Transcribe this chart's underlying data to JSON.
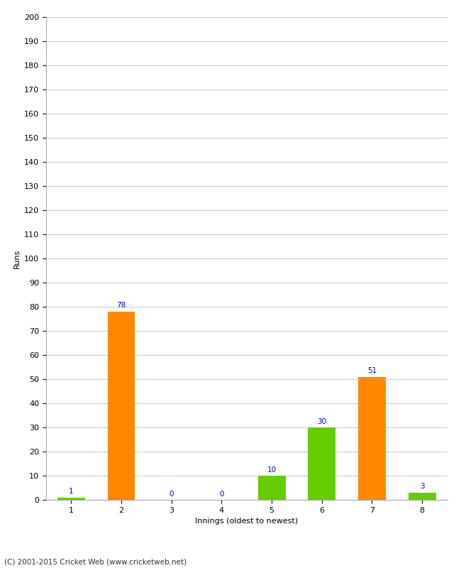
{
  "categories": [
    "1",
    "2",
    "3",
    "4",
    "5",
    "6",
    "7",
    "8"
  ],
  "values": [
    1,
    78,
    0,
    0,
    10,
    30,
    51,
    3
  ],
  "bar_colors": [
    "#66cc00",
    "#ff8800",
    "#66cc00",
    "#66cc00",
    "#66cc00",
    "#66cc00",
    "#ff8800",
    "#66cc00"
  ],
  "xlabel": "Innings (oldest to newest)",
  "ylabel": "Runs",
  "ylim": [
    0,
    200
  ],
  "yticks": [
    0,
    10,
    20,
    30,
    40,
    50,
    60,
    70,
    80,
    90,
    100,
    110,
    120,
    130,
    140,
    150,
    160,
    170,
    180,
    190,
    200
  ],
  "value_label_color": "#0000cc",
  "value_label_fontsize": 7.5,
  "axis_label_fontsize": 8,
  "tick_fontsize": 8,
  "footer": "(C) 2001-2015 Cricket Web (www.cricketweb.net)",
  "background_color": "#ffffff",
  "grid_color": "#cccccc",
  "bar_width": 0.55
}
